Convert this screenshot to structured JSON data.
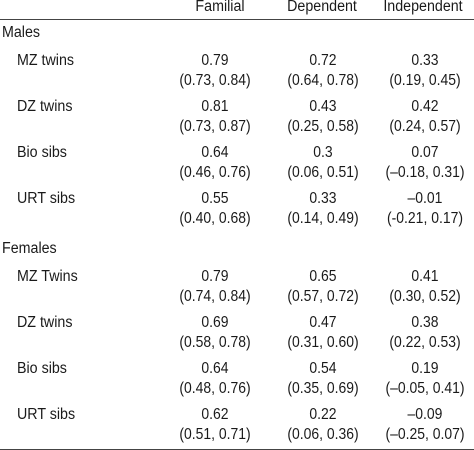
{
  "columns": [
    "Familial",
    "Dependent",
    "Independent"
  ],
  "groups": [
    {
      "name": "Males",
      "rows": [
        {
          "label": "MZ twins",
          "values": [
            "0.79",
            "0.72",
            "0.33"
          ],
          "ci": [
            "(0.73, 0.84)",
            "(0.64, 0.78)",
            "(0.19, 0.45)"
          ]
        },
        {
          "label": "DZ twins",
          "values": [
            "0.81",
            "0.43",
            "0.42"
          ],
          "ci": [
            "(0.73, 0.87)",
            "(0.25, 0.58)",
            "(0.24, 0.57)"
          ]
        },
        {
          "label": "Bio sibs",
          "values": [
            "0.64",
            "0.3",
            "0.07"
          ],
          "ci": [
            "(0.46, 0.76)",
            "(0.06, 0.51)",
            "(–0.18, 0.31)"
          ]
        },
        {
          "label": "URT sibs",
          "values": [
            "0.55",
            "0.33",
            "–0.01"
          ],
          "ci": [
            "(0.40, 0.68)",
            "(0.14, 0.49)",
            "(-0.21, 0.17)"
          ]
        }
      ]
    },
    {
      "name": "Females",
      "rows": [
        {
          "label": "MZ Twins",
          "values": [
            "0.79",
            "0.65",
            "0.41"
          ],
          "ci": [
            "(0.74, 0.84)",
            "(0.57, 0.72)",
            "(0.30, 0.52)"
          ]
        },
        {
          "label": "DZ twins",
          "values": [
            "0.69",
            "0.47",
            "0.38"
          ],
          "ci": [
            "(0.58, 0.78)",
            "(0.31, 0.60)",
            "(0.22, 0.53)"
          ]
        },
        {
          "label": "Bio sibs",
          "values": [
            "0.64",
            "0.54",
            "0.19"
          ],
          "ci": [
            "(0.48, 0.76)",
            "(0.35, 0.69)",
            "(–0.05, 0.41)"
          ]
        },
        {
          "label": "URT sibs",
          "values": [
            "0.62",
            "0.22",
            "–0.09"
          ],
          "ci": [
            "(0.51, 0.71)",
            "(0.06, 0.36)",
            "(–0.25, 0.07)"
          ]
        }
      ]
    }
  ]
}
